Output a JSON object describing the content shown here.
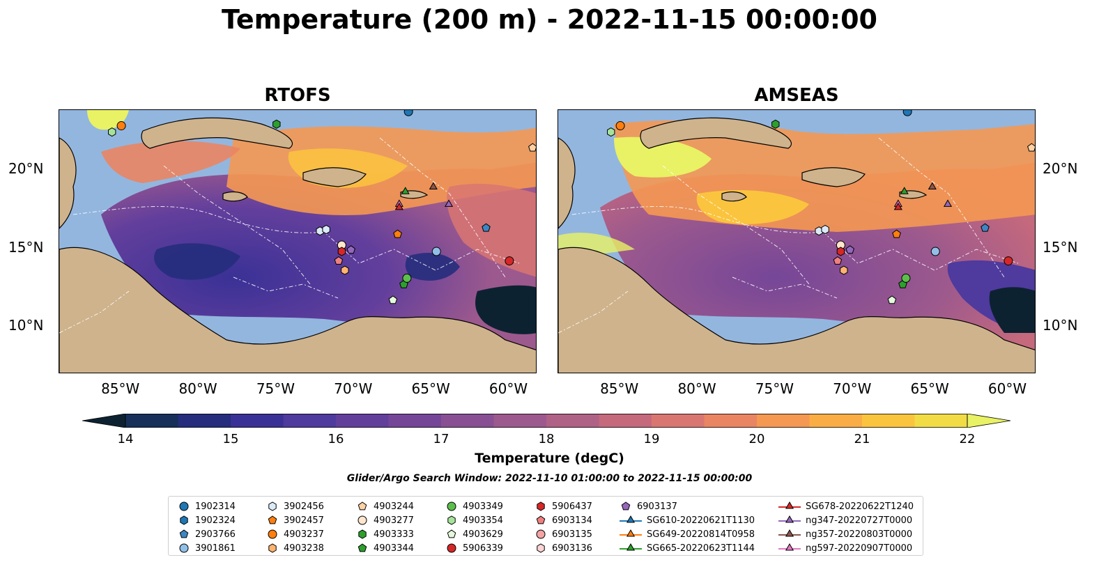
{
  "title": "Temperature (200 m) - 2022-11-15 00:00:00",
  "panels": [
    {
      "title": "RTOFS"
    },
    {
      "title": "AMSEAS"
    }
  ],
  "axes": {
    "x_ticks": [
      "85°W",
      "80°W",
      "75°W",
      "70°W",
      "65°W",
      "60°W"
    ],
    "x_tick_values": [
      -85,
      -80,
      -75,
      -70,
      -65,
      -60
    ],
    "y_ticks": [
      "20°N",
      "15°N",
      "10°N"
    ],
    "y_tick_values": [
      20,
      15,
      10
    ],
    "lon_range": [
      -89,
      -58.2
    ],
    "lat_range": [
      7,
      23.8
    ]
  },
  "colorbar": {
    "label": "Temperature (degC)",
    "ticks": [
      "14",
      "15",
      "16",
      "17",
      "18",
      "19",
      "20",
      "21",
      "22"
    ],
    "min": 14,
    "max": 22,
    "step": 0.5,
    "extend": "both",
    "colors": [
      "#0d2231",
      "#16305a",
      "#252d7c",
      "#3a3196",
      "#4f3a9e",
      "#633f9c",
      "#754698",
      "#885093",
      "#9c598d",
      "#b06186",
      "#c5697d",
      "#d97672",
      "#ea8563",
      "#f59852",
      "#faad45",
      "#fbc43e",
      "#f1dc45",
      "#e8f264"
    ]
  },
  "search_window": "Glider/Argo Search Window: 2022-11-10 01:00:00 to 2022-11-15 00:00:00",
  "legend": [
    {
      "label": "1902314",
      "marker": "circle",
      "color": "#1f77b4"
    },
    {
      "label": "1902324",
      "marker": "hexagon",
      "color": "#1f77b4"
    },
    {
      "label": "2903766",
      "marker": "pentagon",
      "color": "#3d86c4"
    },
    {
      "label": "3901861",
      "marker": "circle",
      "color": "#92bfe8"
    },
    {
      "label": "3902456",
      "marker": "hexagon",
      "color": "#dbeaf7"
    },
    {
      "label": "3902457",
      "marker": "pentagon",
      "color": "#ff7f0e"
    },
    {
      "label": "4903237",
      "marker": "circle",
      "color": "#ff7f0e"
    },
    {
      "label": "4903238",
      "marker": "hexagon",
      "color": "#ffb370"
    },
    {
      "label": "4903244",
      "marker": "pentagon",
      "color": "#ffd1a3"
    },
    {
      "label": "4903277",
      "marker": "circle",
      "color": "#ffe6cc"
    },
    {
      "label": "4903333",
      "marker": "hexagon",
      "color": "#2ca02c"
    },
    {
      "label": "4903344",
      "marker": "pentagon",
      "color": "#2ca02c"
    },
    {
      "label": "4903349",
      "marker": "circle",
      "color": "#5cbf4c"
    },
    {
      "label": "4903354",
      "marker": "hexagon",
      "color": "#a6e39a"
    },
    {
      "label": "4903629",
      "marker": "pentagon",
      "color": "#e4f9dc"
    },
    {
      "label": "5906339",
      "marker": "circle",
      "color": "#d62728"
    },
    {
      "label": "5906437",
      "marker": "hexagon",
      "color": "#d62728"
    },
    {
      "label": "6903134",
      "marker": "pentagon",
      "color": "#f08080"
    },
    {
      "label": "6903135",
      "marker": "circle",
      "color": "#f5a3a3"
    },
    {
      "label": "6903136",
      "marker": "hexagon",
      "color": "#fbd4d4"
    },
    {
      "label": "6903137",
      "marker": "pentagon",
      "color": "#9467bd"
    },
    {
      "label": "SG610-20220621T1130",
      "marker": "triangle-line",
      "color": "#1f77b4"
    },
    {
      "label": "SG649-20220814T0958",
      "marker": "triangle-line",
      "color": "#ff7f0e"
    },
    {
      "label": "SG665-20220623T1144",
      "marker": "triangle-line",
      "color": "#2ca02c"
    },
    {
      "label": "SG678-20220622T1240",
      "marker": "triangle-line",
      "color": "#d62728"
    },
    {
      "label": "ng347-20220727T0000",
      "marker": "triangle-line",
      "color": "#9467bd"
    },
    {
      "label": "ng357-20220803T0000",
      "marker": "triangle-line",
      "color": "#8c564b"
    },
    {
      "label": "ng597-20220907T0000",
      "marker": "triangle-line",
      "color": "#e377c2"
    }
  ],
  "observations": [
    {
      "id": "1902314",
      "lon": -66.5,
      "lat": 23.7
    },
    {
      "id": "2903766",
      "lon": -61.5,
      "lat": 16.3
    },
    {
      "id": "3901861",
      "lon": -64.7,
      "lat": 14.8
    },
    {
      "id": "3902456",
      "lon": -72.2,
      "lat": 16.1
    },
    {
      "id": "3902456",
      "lon": -71.8,
      "lat": 16.2
    },
    {
      "id": "3902457",
      "lon": -67.2,
      "lat": 15.9
    },
    {
      "id": "4903237",
      "lon": -85.0,
      "lat": 22.8
    },
    {
      "id": "4903238",
      "lon": -70.6,
      "lat": 13.6
    },
    {
      "id": "4903244",
      "lon": -58.5,
      "lat": 21.4
    },
    {
      "id": "4903277",
      "lon": -70.8,
      "lat": 15.2
    },
    {
      "id": "4903333",
      "lon": -75.0,
      "lat": 22.9
    },
    {
      "id": "4903344",
      "lon": -66.8,
      "lat": 12.7
    },
    {
      "id": "4903349",
      "lon": -66.6,
      "lat": 13.1
    },
    {
      "id": "4903354",
      "lon": -85.6,
      "lat": 22.4
    },
    {
      "id": "4903629",
      "lon": -67.5,
      "lat": 11.7
    },
    {
      "id": "5906339",
      "lon": -60.0,
      "lat": 14.2
    },
    {
      "id": "5906437",
      "lon": -70.8,
      "lat": 14.8
    },
    {
      "id": "6903134",
      "lon": -71.0,
      "lat": 14.2
    },
    {
      "id": "6903137",
      "lon": -70.2,
      "lat": 14.9
    },
    {
      "id": "SG665-20220623T1144",
      "lon": -66.7,
      "lat": 18.6
    },
    {
      "id": "ng357-20220803T0000",
      "lon": -64.9,
      "lat": 18.9
    },
    {
      "id": "ng347-20220727T0000",
      "lon": -63.9,
      "lat": 17.8
    },
    {
      "id": "ng597-20220907T0000",
      "lon": -67.1,
      "lat": 17.8
    },
    {
      "id": "SG678-20220622T1240",
      "lon": -67.1,
      "lat": 17.6
    }
  ]
}
